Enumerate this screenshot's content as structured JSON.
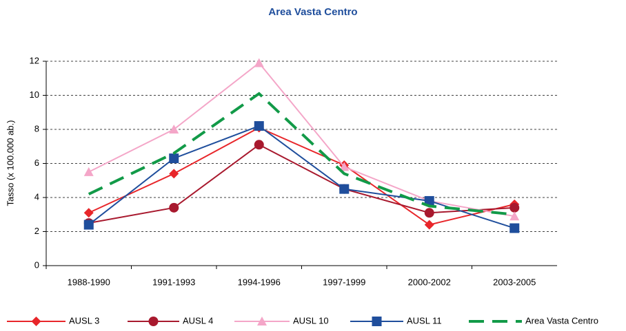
{
  "chart_data": {
    "type": "line",
    "title": "Area Vasta Centro",
    "y_label": "Tasso (x 100.000 ab.)",
    "categories": [
      "1988-1990",
      "1991-1993",
      "1994-1996",
      "1997-1999",
      "2000-2002",
      "2003-2005"
    ],
    "series": [
      {
        "name": "AUSL 3",
        "color": "#e8262a",
        "marker": "diamond",
        "style": "solid",
        "values": [
          3.1,
          5.4,
          8.1,
          5.9,
          2.4,
          3.6
        ]
      },
      {
        "name": "AUSL 4",
        "color": "#a8192e",
        "marker": "circle",
        "style": "solid",
        "values": [
          2.5,
          3.4,
          7.1,
          4.5,
          3.1,
          3.4
        ]
      },
      {
        "name": "AUSL 10",
        "color": "#f4a6c8",
        "marker": "triangle",
        "style": "solid",
        "values": [
          5.5,
          8.0,
          11.9,
          5.8,
          3.8,
          2.9
        ]
      },
      {
        "name": "AUSL 11",
        "color": "#1f4e9c",
        "marker": "square",
        "style": "solid",
        "values": [
          2.4,
          6.3,
          8.2,
          4.5,
          3.8,
          2.2
        ]
      },
      {
        "name": "Area Vasta Centro",
        "color": "#129a48",
        "marker": "none",
        "style": "dashed",
        "values": [
          4.2,
          6.6,
          10.1,
          5.4,
          3.5,
          3.0
        ]
      }
    ],
    "ylim": [
      0,
      12
    ],
    "yticks": [
      0,
      2,
      4,
      6,
      8,
      10,
      12
    ],
    "grid": true,
    "legend": "bottom"
  }
}
